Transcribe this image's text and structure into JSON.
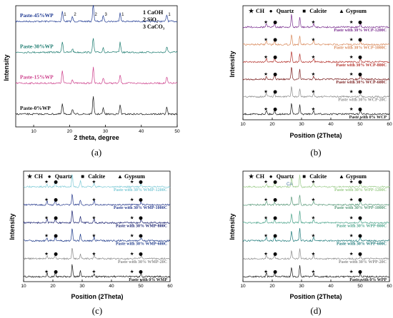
{
  "chart_data": [
    {
      "panel_label": "(a)",
      "type": "line",
      "xlabel": "2 theta, degree",
      "ylabel": "Intensity",
      "xlim": [
        5,
        50
      ],
      "xticks": [
        "10",
        "20",
        "30",
        "40",
        "50"
      ],
      "legend": [
        "1 CaOH",
        "2 SiO₂",
        "3 CaCO₃"
      ],
      "series": [
        {
          "name": "Paste-45%WP",
          "color": "#1f3a93"
        },
        {
          "name": "Paste-30%WP",
          "color": "#1a7a6e"
        },
        {
          "name": "Paste-15%WP",
          "color": "#cc3d8a"
        },
        {
          "name": "Paste-0%WP",
          "color": "#111111"
        }
      ],
      "peak_labels": [
        {
          "x": 18.0,
          "label": "1"
        },
        {
          "x": 20.8,
          "label": "2"
        },
        {
          "x": 26.6,
          "label": "2"
        },
        {
          "x": 29.4,
          "label": "3"
        },
        {
          "x": 34.1,
          "label": "1"
        },
        {
          "x": 47.1,
          "label": "1"
        }
      ],
      "peaks": [
        {
          "x": 18.0,
          "h": 0.75
        },
        {
          "x": 20.8,
          "h": 0.25
        },
        {
          "x": 26.6,
          "h": 1.0
        },
        {
          "x": 29.4,
          "h": 0.35
        },
        {
          "x": 34.1,
          "h": 0.6
        },
        {
          "x": 47.1,
          "h": 0.4
        }
      ]
    },
    {
      "panel_label": "(b)",
      "type": "line",
      "xlabel": "Position (2Theta)",
      "ylabel": "Intensity",
      "xlim": [
        10,
        60
      ],
      "xticks": [
        "10",
        "20",
        "30",
        "40",
        "50",
        "60"
      ],
      "legend": [
        "CH",
        "Quartz",
        "Calcite",
        "Gypsum"
      ],
      "series": [
        {
          "name": "Paste with 30% WCP-1200C",
          "color": "#7a2f8f"
        },
        {
          "name": "Paste with 30% WCP-1000C",
          "color": "#d9895a"
        },
        {
          "name": "Paste with 30% WCP-800C",
          "color": "#b5342e"
        },
        {
          "name": "Paste with 30% WCP-600C",
          "color": "#7a1f1f"
        },
        {
          "name": "Paste with 30% WCP-20C",
          "color": "#8a8a8a"
        },
        {
          "name": "Paste with 0% WCP",
          "color": "#1a1a1a"
        }
      ],
      "peaks": [
        {
          "x": 18.0,
          "h": 0.3
        },
        {
          "x": 20.8,
          "h": 0.3
        },
        {
          "x": 26.6,
          "h": 0.9
        },
        {
          "x": 29.4,
          "h": 0.7
        },
        {
          "x": 34.1,
          "h": 0.3
        },
        {
          "x": 50.1,
          "h": 0.25
        }
      ]
    },
    {
      "panel_label": "(c)",
      "type": "line",
      "xlabel": "Position (2Theta)",
      "ylabel": "Intensity",
      "xlim": [
        10,
        60
      ],
      "xticks": [
        "10",
        "20",
        "30",
        "40",
        "50",
        "60"
      ],
      "legend": [
        "CH",
        "Quartz",
        "Calcite",
        "Gypsum"
      ],
      "series": [
        {
          "name": "Paste with 30% WMP-1200C",
          "color": "#7ecad6"
        },
        {
          "name": "Paste with 30% WMP-1000C",
          "color": "#2a3d8f"
        },
        {
          "name": "Paste with 30% WMP-800C",
          "color": "#1a2270"
        },
        {
          "name": "Paste with 30% WMP-600C",
          "color": "#1e3a8a"
        },
        {
          "name": "Paste with 30% WMP-20C",
          "color": "#8a8a8a"
        },
        {
          "name": "Paste with 0% WMP",
          "color": "#1a1a1a"
        }
      ],
      "peaks": [
        {
          "x": 18.0,
          "h": 0.3
        },
        {
          "x": 20.8,
          "h": 0.35
        },
        {
          "x": 26.6,
          "h": 0.95
        },
        {
          "x": 29.4,
          "h": 0.45
        },
        {
          "x": 34.1,
          "h": 0.3
        },
        {
          "x": 50.1,
          "h": 0.25
        }
      ]
    },
    {
      "panel_label": "(d)",
      "type": "line",
      "xlabel": "Position (2Theta)",
      "ylabel": "Intensity",
      "xlim": [
        10,
        60
      ],
      "xticks": [
        "10",
        "20",
        "30",
        "40",
        "50",
        "60"
      ],
      "legend": [
        "CH",
        "Quartz",
        "Calcite",
        "Gypsum"
      ],
      "annotation": "CA",
      "series": [
        {
          "name": "Paste with 30% WPP-1200C",
          "color": "#9ccc8a"
        },
        {
          "name": "Paste with 30% WPP-1000C",
          "color": "#5a9a7a"
        },
        {
          "name": "Paste with 30% WPP-800C",
          "color": "#4aa38a"
        },
        {
          "name": "Paste with 30% WPP-600C",
          "color": "#1e7a7a"
        },
        {
          "name": "Paste with 30% WPP-20C",
          "color": "#8a8a8a"
        },
        {
          "name": "Paste with 0% WPP",
          "color": "#1a1a1a"
        }
      ],
      "peaks": [
        {
          "x": 18.0,
          "h": 0.3
        },
        {
          "x": 20.8,
          "h": 0.3
        },
        {
          "x": 26.6,
          "h": 0.7
        },
        {
          "x": 29.4,
          "h": 0.9
        },
        {
          "x": 34.1,
          "h": 0.3
        },
        {
          "x": 50.1,
          "h": 0.25
        }
      ]
    }
  ]
}
